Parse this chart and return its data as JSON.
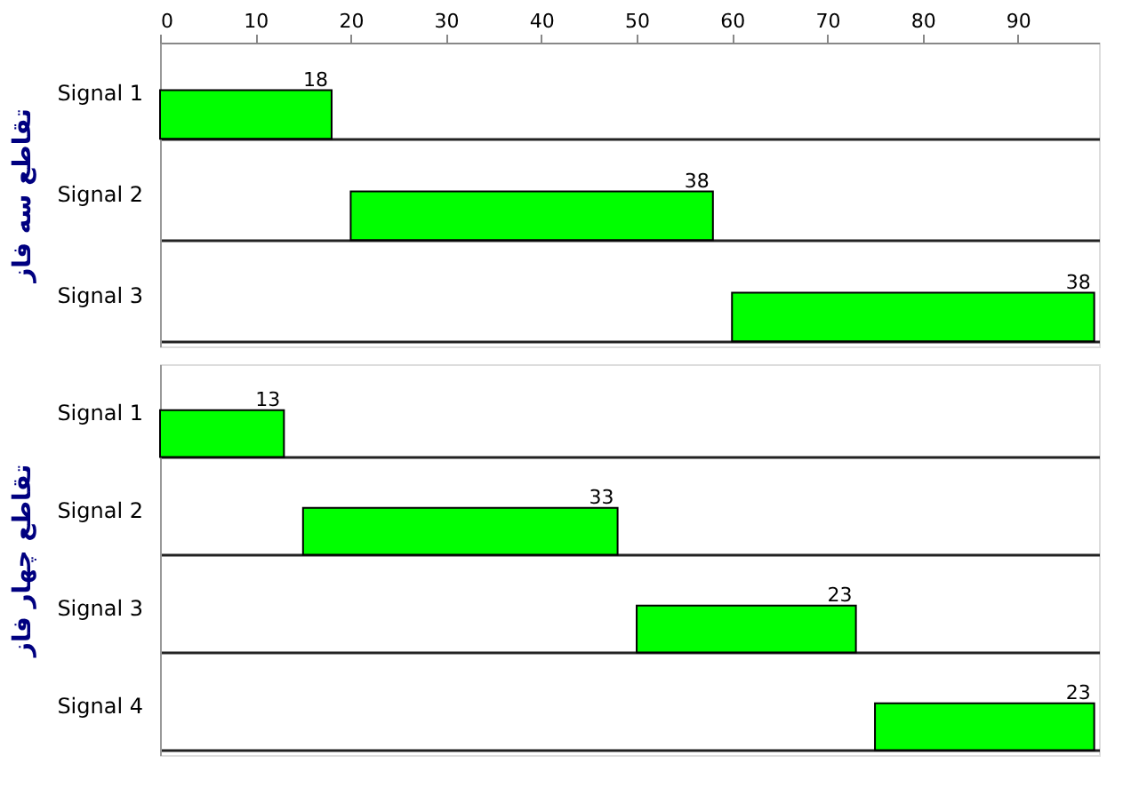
{
  "chart_data": [
    {
      "type": "bar",
      "orientation": "horizontal",
      "ylabel": "تقاطع سه فاز",
      "categories": [
        "Signal 1",
        "Signal 2",
        "Signal 3"
      ],
      "values": [
        18,
        38,
        38
      ],
      "base": [
        0,
        20,
        60
      ],
      "color": "#00ff00",
      "data_labels": true,
      "grid": "y",
      "xlim": [
        0,
        98.5
      ],
      "xticks": [
        0,
        10,
        20,
        30,
        40,
        50,
        60,
        70,
        80,
        90
      ]
    },
    {
      "type": "bar",
      "orientation": "horizontal",
      "ylabel": "تقاطع چهار فاز",
      "categories": [
        "Signal 1",
        "Signal 2",
        "Signal 3",
        "Signal 4"
      ],
      "values": [
        13,
        33,
        23,
        23
      ],
      "base": [
        0,
        15,
        50,
        75
      ],
      "color": "#00ff00",
      "data_labels": true,
      "grid": "y",
      "xlim": [
        0,
        98.5
      ],
      "xticks": [
        0,
        10,
        20,
        30,
        40,
        50,
        60,
        70,
        80,
        90
      ],
      "tick_labels": "y"
    }
  ]
}
